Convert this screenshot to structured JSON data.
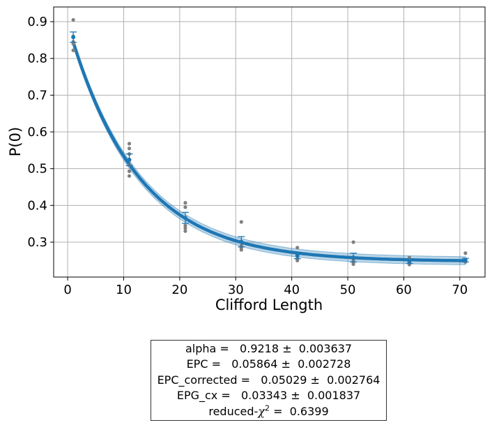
{
  "chart_data": {
    "type": "scatter",
    "title": "",
    "xlabel": "Clifford Length",
    "ylabel": "P(0)",
    "xlim": [
      -2.5,
      74.5
    ],
    "ylim": [
      0.205,
      0.94
    ],
    "xticks": [
      0,
      10,
      20,
      30,
      40,
      50,
      60,
      70
    ],
    "yticks": [
      0.3,
      0.4,
      0.5,
      0.6,
      0.7,
      0.8,
      0.9
    ],
    "grid": true,
    "legend": "none",
    "samples": {
      "x": [
        1,
        1,
        1,
        1,
        1,
        11,
        11,
        11,
        11,
        11,
        11,
        11,
        21,
        21,
        21,
        21,
        21,
        21,
        31,
        31,
        31,
        31,
        41,
        41,
        41,
        41,
        51,
        51,
        51,
        51,
        61,
        61,
        61,
        61,
        71,
        71,
        71,
        71
      ],
      "y": [
        0.905,
        0.86,
        0.845,
        0.84,
        0.822,
        0.568,
        0.555,
        0.54,
        0.525,
        0.51,
        0.493,
        0.48,
        0.407,
        0.395,
        0.365,
        0.345,
        0.338,
        0.33,
        0.355,
        0.29,
        0.284,
        0.279,
        0.285,
        0.262,
        0.255,
        0.25,
        0.3,
        0.252,
        0.245,
        0.24,
        0.258,
        0.25,
        0.243,
        0.239,
        0.27,
        0.252,
        0.248,
        0.246
      ],
      "color": "#808080"
    },
    "means": {
      "x": [
        1,
        11,
        21,
        31,
        41,
        51,
        61,
        71
      ],
      "y": [
        0.858,
        0.524,
        0.366,
        0.301,
        0.263,
        0.258,
        0.248,
        0.251
      ],
      "yerr": [
        0.014,
        0.016,
        0.015,
        0.014,
        0.008,
        0.012,
        0.006,
        0.005
      ],
      "color": "#1f77b4"
    },
    "fit": {
      "model": "A*alpha^x + B",
      "A": 0.647,
      "alpha": 0.9218,
      "B": 0.2475,
      "band_halfwidth": 0.011,
      "color": "#1f77b4"
    },
    "results": [
      {
        "text": "alpha =   0.9218 ±  0.003637"
      },
      {
        "text": "EPC =   0.05864 ±  0.002728"
      },
      {
        "text": "EPC_corrected =   0.05029 ±  0.002764"
      },
      {
        "text": "EPG_cx =   0.03343 ±  0.001837"
      },
      {
        "prefix": "reduced-",
        "chi": "χ",
        "sup": "2",
        "suffix": " =  0.6399"
      }
    ]
  }
}
